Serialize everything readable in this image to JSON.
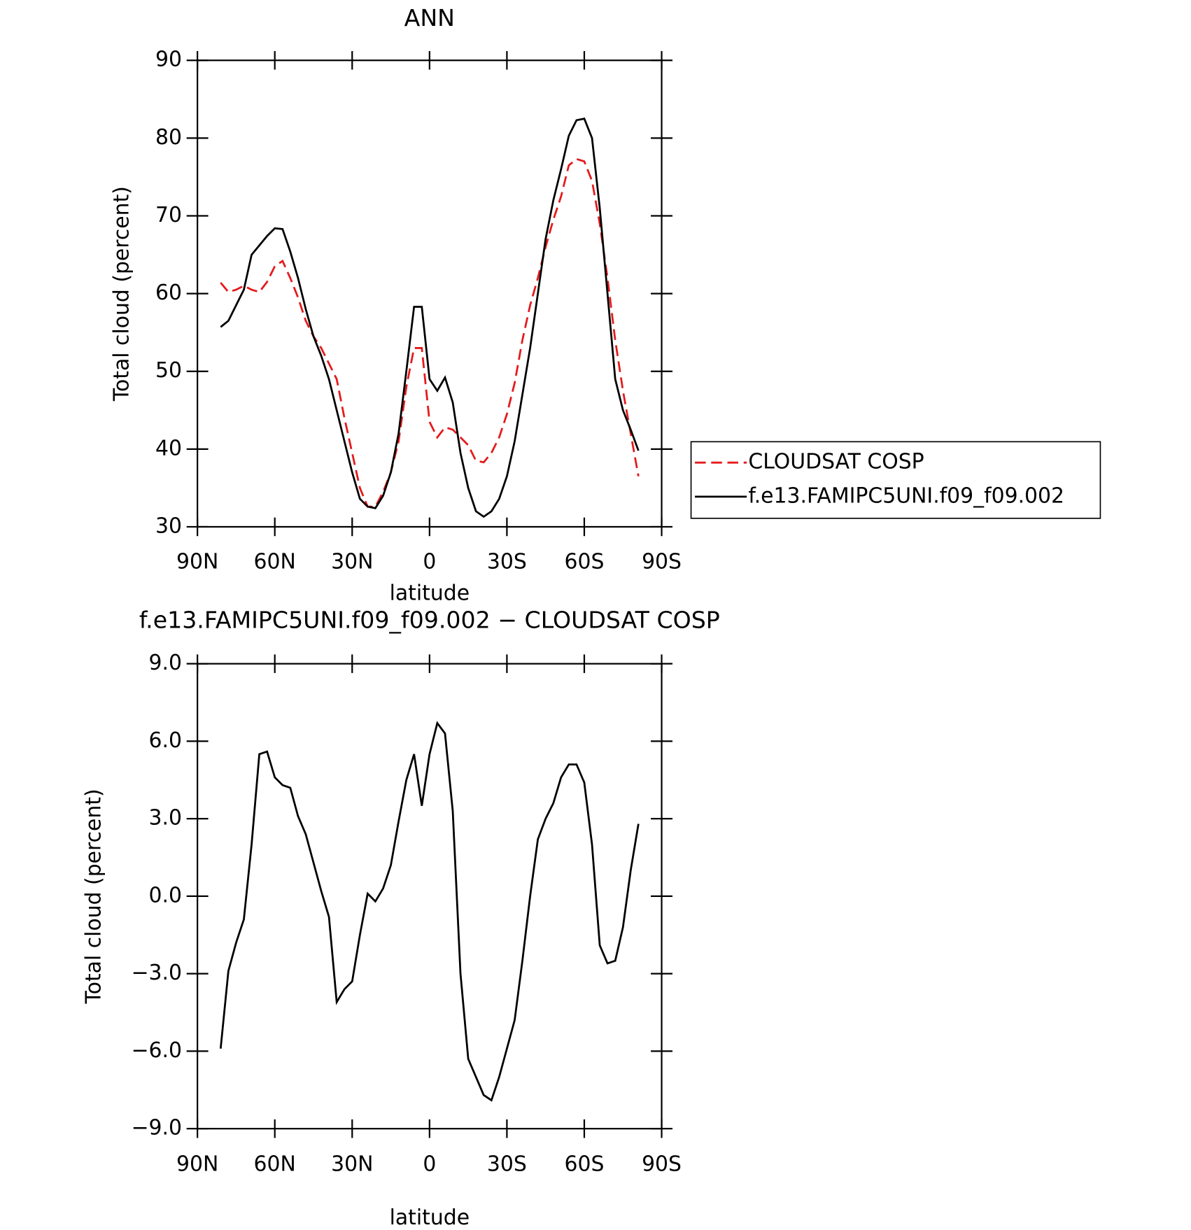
{
  "chart_data": [
    {
      "type": "line",
      "title": "ANN",
      "xlabel": "latitude",
      "ylabel": "Total cloud (percent)",
      "x": [
        81,
        78,
        75,
        72,
        69,
        66,
        63,
        60,
        57,
        54,
        51,
        48,
        45,
        42,
        39,
        36,
        33,
        30,
        27,
        24,
        21,
        18,
        15,
        12,
        9,
        6,
        3,
        0,
        -3,
        -6,
        -9,
        -12,
        -15,
        -18,
        -21,
        -24,
        -27,
        -30,
        -33,
        -36,
        -39,
        -42,
        -45,
        -48,
        -51,
        -54,
        -57,
        -60,
        -63,
        -66,
        -69,
        -72,
        -75,
        -78,
        -81
      ],
      "series": [
        {
          "name": "CLOUDSAT COSP",
          "color": "#e41a1c",
          "linestyle": "dashed",
          "values": [
            61.4,
            60.2,
            60.5,
            61,
            60.5,
            60.2,
            61.5,
            63.5,
            64.2,
            62,
            59.5,
            56.5,
            54.5,
            53,
            51,
            49,
            44,
            39.5,
            35,
            32.6,
            32.6,
            34.5,
            37,
            41,
            48,
            53,
            53,
            43.5,
            41.5,
            42.8,
            42.5,
            41.5,
            40.5,
            38.5,
            38.3,
            39.5,
            41.5,
            44.5,
            48.5,
            54,
            58.5,
            62,
            66,
            69.5,
            72.5,
            76.5,
            77.3,
            77,
            74.5,
            69,
            62,
            54,
            47.5,
            42,
            36.5
          ]
        },
        {
          "name": "f.e13.FAMIPC5UNI.f09_f09.002",
          "color": "#000000",
          "linestyle": "solid",
          "values": [
            55.7,
            56.5,
            58.5,
            60.5,
            65,
            66.2,
            67.4,
            68.4,
            68.3,
            65.4,
            62,
            58,
            54.5,
            52,
            49,
            45,
            41,
            37,
            33.6,
            32.6,
            32.4,
            34,
            37,
            42,
            50,
            58.3,
            58.3,
            49,
            47.5,
            49.2,
            46,
            39.5,
            35,
            32,
            31.3,
            32,
            33.6,
            36.5,
            41,
            47,
            53,
            60,
            67,
            72,
            76,
            80.3,
            82.3,
            82.5,
            80,
            71,
            60,
            49,
            45,
            42.5,
            39.8
          ]
        }
      ],
      "xlim": [
        90,
        -90
      ],
      "xticks": [
        {
          "value": 90,
          "label": "90N"
        },
        {
          "value": 60,
          "label": "60N"
        },
        {
          "value": 30,
          "label": "30N"
        },
        0,
        {
          "value": -30,
          "label": "30S"
        },
        {
          "value": -60,
          "label": "60S"
        },
        {
          "value": -90,
          "label": "90S"
        }
      ],
      "ylim": [
        30,
        90
      ],
      "yticks": [
        30,
        40,
        50,
        60,
        70,
        80,
        90
      ],
      "legend": "right"
    },
    {
      "type": "line",
      "title": "f.e13.FAMIPC5UNI.f09_f09.002 − CLOUDSAT COSP",
      "xlabel": "latitude",
      "ylabel": "Total cloud (percent)",
      "x": [
        81,
        78,
        75,
        72,
        69,
        66,
        63,
        60,
        57,
        54,
        51,
        48,
        45,
        42,
        39,
        36,
        33,
        30,
        27,
        24,
        21,
        18,
        15,
        12,
        9,
        6,
        3,
        0,
        -3,
        -6,
        -9,
        -12,
        -15,
        -18,
        -21,
        -24,
        -27,
        -30,
        -33,
        -36,
        -39,
        -42,
        -45,
        -48,
        -51,
        -54,
        -57,
        -60,
        -63,
        -66,
        -69,
        -72,
        -75,
        -78,
        -81
      ],
      "series": [
        {
          "color": "#000000",
          "linestyle": "solid",
          "values": [
            -5.9,
            -2.9,
            -1.8,
            -0.9,
            2,
            5.5,
            5.6,
            4.6,
            4.3,
            4.2,
            3.1,
            2.4,
            1.3,
            0.2,
            -0.8,
            -4.1,
            -3.6,
            -3.3,
            -1.5,
            0.1,
            -0.2,
            0.3,
            1.2,
            2.9,
            4.5,
            5.5,
            3.5,
            5.5,
            6.7,
            6.3,
            3.3,
            -3,
            -6.3,
            -7,
            -7.7,
            -7.9,
            -7,
            -5.9,
            -4.8,
            -2.5,
            0,
            2.2,
            3,
            3.6,
            4.6,
            5.1,
            5.1,
            4.4,
            2,
            -1.9,
            -2.6,
            -2.5,
            -1.2,
            1,
            2.8
          ]
        }
      ],
      "xlim": [
        90,
        -90
      ],
      "xticks": [
        {
          "value": 90,
          "label": "90N"
        },
        {
          "value": 60,
          "label": "60N"
        },
        {
          "value": 30,
          "label": "30N"
        },
        0,
        {
          "value": -30,
          "label": "30S"
        },
        {
          "value": -60,
          "label": "60S"
        },
        {
          "value": -90,
          "label": "90S"
        }
      ],
      "ylim": [
        -9,
        9
      ],
      "yticks": [
        {
          "value": -9,
          "label": "−9.0"
        },
        {
          "value": -6,
          "label": "−6.0"
        },
        {
          "value": -3,
          "label": "−3.0"
        },
        {
          "value": 0,
          "label": "0.0"
        },
        {
          "value": 3,
          "label": "3.0"
        },
        {
          "value": 6,
          "label": "6.0"
        },
        {
          "value": 9,
          "label": "9.0"
        }
      ]
    }
  ]
}
